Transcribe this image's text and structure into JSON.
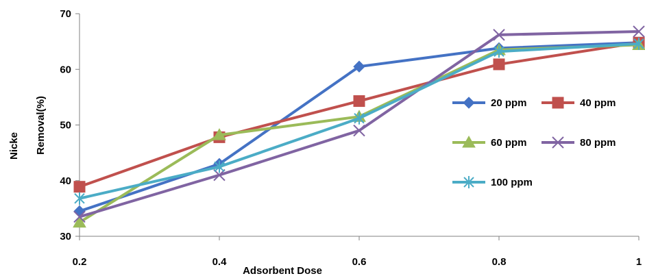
{
  "chart_data": {
    "type": "line",
    "xlabel": "Adsorbent Dose",
    "ylabel_parts": [
      "Nicke",
      "Removal(%)"
    ],
    "x": [
      0.2,
      0.4,
      0.6,
      0.8,
      1
    ],
    "x_tick_labels": [
      "0.2",
      "0.4",
      "0.6",
      "0.8",
      "1"
    ],
    "ylim": [
      30,
      70
    ],
    "y_ticks": [
      30,
      40,
      50,
      60,
      70
    ],
    "grid": false,
    "legend_position": "right",
    "series": [
      {
        "name": "20 ppm",
        "color": "#4472C4",
        "marker": "diamond",
        "values": [
          34.5,
          43.0,
          60.5,
          63.8,
          64.8
        ]
      },
      {
        "name": "40 ppm",
        "color": "#C0504D",
        "marker": "square",
        "values": [
          38.9,
          47.8,
          54.3,
          60.9,
          64.8
        ]
      },
      {
        "name": "60 ppm",
        "color": "#9BBB59",
        "marker": "triangle",
        "values": [
          32.5,
          48.2,
          51.5,
          63.5,
          64.4
        ]
      },
      {
        "name": "80 ppm",
        "color": "#8064A2",
        "marker": "x",
        "values": [
          33.5,
          41.0,
          49.0,
          66.2,
          66.8
        ]
      },
      {
        "name": "100 ppm",
        "color": "#4BACC6",
        "marker": "star",
        "values": [
          36.8,
          42.5,
          51.2,
          63.2,
          64.6
        ]
      }
    ]
  }
}
